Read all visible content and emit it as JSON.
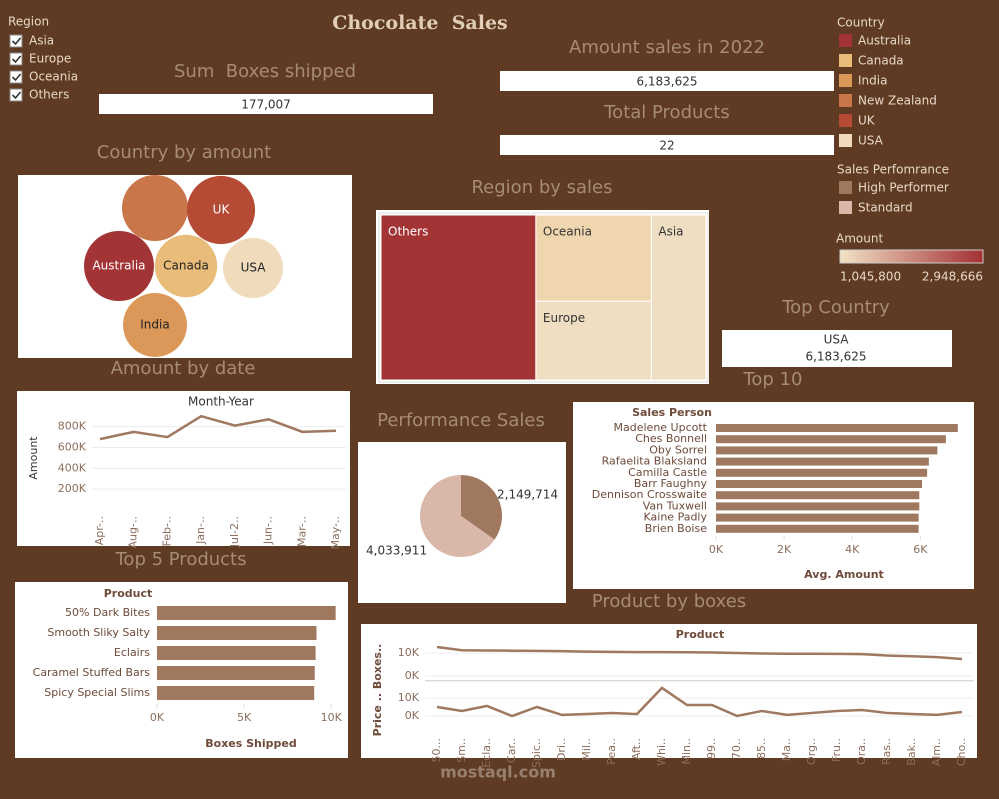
{
  "title": "Chocolate  Sales",
  "filter": {
    "title": "Region",
    "items": [
      "Asia",
      "Europe",
      "Oceania",
      "Others"
    ]
  },
  "kpis": [
    {
      "label": "Sum  Boxes shipped",
      "value": "177,007"
    },
    {
      "label": "Amount sales in 2022",
      "value": "6,183,625"
    },
    {
      "label": "Total Products",
      "value": "22"
    }
  ],
  "top_country": {
    "label": "Top Country",
    "country": "USA",
    "value": "6,183,625"
  },
  "legends": {
    "country": {
      "title": "Country",
      "items": [
        {
          "name": "Australia",
          "color": "#a33436"
        },
        {
          "name": "Canada",
          "color": "#e9bc7a"
        },
        {
          "name": "India",
          "color": "#dc9859"
        },
        {
          "name": "New Zealand",
          "color": "#c9764a"
        },
        {
          "name": "UK",
          "color": "#b64b35"
        },
        {
          "name": "USA",
          "color": "#f0dcbc"
        }
      ]
    },
    "performance": {
      "title": "Sales Perfomrance",
      "items": [
        {
          "name": "High Performer",
          "color": "#a07860"
        },
        {
          "name": "Standard",
          "color": "#d9b8aa"
        }
      ]
    },
    "amount": {
      "title": "Amount",
      "min": "1,045,800",
      "max": "2,948,666",
      "colors": [
        "#f3e3c4",
        "#a32f33"
      ]
    }
  },
  "chart_data": [
    {
      "type": "bubble",
      "title": "Country by amount",
      "categories": [
        "Australia",
        "Canada",
        "India",
        null,
        "UK",
        "USA"
      ],
      "values": [
        2948666,
        1500000,
        1800000,
        2200000,
        2600000,
        1045800
      ]
    },
    {
      "type": "treemap",
      "title": "Region by sales",
      "categories": [
        "Others",
        "Oceania",
        "Europe",
        "Asia"
      ],
      "values": [
        2950000,
        1150000,
        1050000,
        1040000
      ],
      "colors": [
        "#a33436",
        "#f0d6af",
        "#efdec2",
        "#efdec2"
      ]
    },
    {
      "type": "line",
      "title": "Amount by date",
      "x_label": "Month-Year",
      "y_label": "Amount",
      "categories": [
        "Apr-..",
        "Aug-..",
        "Feb-..",
        "Jan-..",
        "Jul-2..",
        "Jun-..",
        "Mar-..",
        "May-.."
      ],
      "values": [
        680000,
        750000,
        700000,
        900000,
        810000,
        870000,
        750000,
        760000
      ],
      "color": "#a07860",
      "ylim": [
        0,
        950000
      ],
      "yticks": [
        {
          "value": 200000,
          "label": "200K"
        },
        {
          "value": 400000,
          "label": "400K"
        },
        {
          "value": 600000,
          "label": "600K"
        },
        {
          "value": 800000,
          "label": "800K"
        }
      ],
      "grid": true
    },
    {
      "type": "pie",
      "title": "Performance Sales",
      "values": [
        2149714,
        4033911
      ],
      "value_labels": [
        "2,149,714",
        "4,033,911"
      ]
    },
    {
      "type": "hbar",
      "title": "Top 10",
      "category_label": "Sales Person",
      "x_label": "Avg. Amount",
      "categories": [
        "Madelene Upcott",
        "Ches Bonnell",
        "Oby Sorrel",
        "Rafaelita Blaksland",
        "Camilla Castle",
        "Barr Faughny",
        "Dennison Crosswaite",
        "Van Tuxwell",
        "Kaine Padly",
        "Brien Boise"
      ],
      "values": [
        7100,
        6750,
        6500,
        6250,
        6200,
        6050,
        5970,
        5970,
        5950,
        5950
      ],
      "color": "#a07860",
      "xlim": [
        0,
        7400
      ],
      "xticks": [
        {
          "value": 0,
          "label": "0K"
        },
        {
          "value": 2000,
          "label": "2K"
        },
        {
          "value": 4000,
          "label": "4K"
        },
        {
          "value": 6000,
          "label": "6K"
        }
      ]
    },
    {
      "type": "hbar",
      "title": "Top 5 Products",
      "category_label": "Product",
      "x_label": "Boxes Shipped",
      "categories": [
        "50% Dark Bites",
        "Smooth Sliky Salty",
        "Eclairs",
        "Caramel Stuffed Bars",
        "Spicy Special Slims"
      ],
      "values": [
        10250,
        9150,
        9100,
        9050,
        9020
      ],
      "color": "#a07860",
      "xlim": [
        0,
        10500
      ],
      "xticks": [
        {
          "value": 0,
          "label": "0K"
        },
        {
          "value": 5000,
          "label": "5K"
        },
        {
          "value": 10000,
          "label": "10K"
        }
      ]
    },
    {
      "type": "line",
      "title": "Product by boxes",
      "x_label": "Product",
      "y_label": "Price .. Boxes..",
      "categories": [
        "50...",
        "Sm..",
        "Ecla..",
        "Car..",
        "Spic..",
        "Dri..",
        "Mil..",
        "Pea..",
        "Aft..",
        "Whi..",
        "Min..",
        "99..",
        "70..",
        "85..",
        "Ma..",
        "Org..",
        "Fru..",
        "Ora..",
        "Ras..",
        "Bak..",
        "Alm..",
        "Cho.."
      ],
      "series": [
        {
          "color": "#a07860",
          "values": [
            12600,
            11200,
            11100,
            11000,
            10900,
            10800,
            10600,
            10500,
            10400,
            10400,
            10300,
            10200,
            10000,
            9800,
            9700,
            9700,
            9600,
            9500,
            8900,
            8600,
            8200,
            7400
          ]
        },
        {
          "color": "#a07860",
          "axis": "y2",
          "values": [
            5000,
            2800,
            5600,
            0,
            5000,
            600,
            1100,
            1700,
            1100,
            15600,
            6100,
            6100,
            0,
            2800,
            600,
            1700,
            2800,
            3300,
            1700,
            1100,
            600,
            2200
          ]
        }
      ],
      "ylim": [
        0,
        14000
      ],
      "yticks": [
        {
          "value": 0,
          "label": "0K"
        },
        {
          "value": 10000,
          "label": "10K"
        }
      ],
      "y2lim": [
        0,
        17000
      ],
      "y2ticks": [
        {
          "value": 0,
          "label": "0K"
        },
        {
          "value": 10000,
          "label": "10K"
        }
      ],
      "grid": true
    }
  ],
  "watermark": "mostaql.com"
}
